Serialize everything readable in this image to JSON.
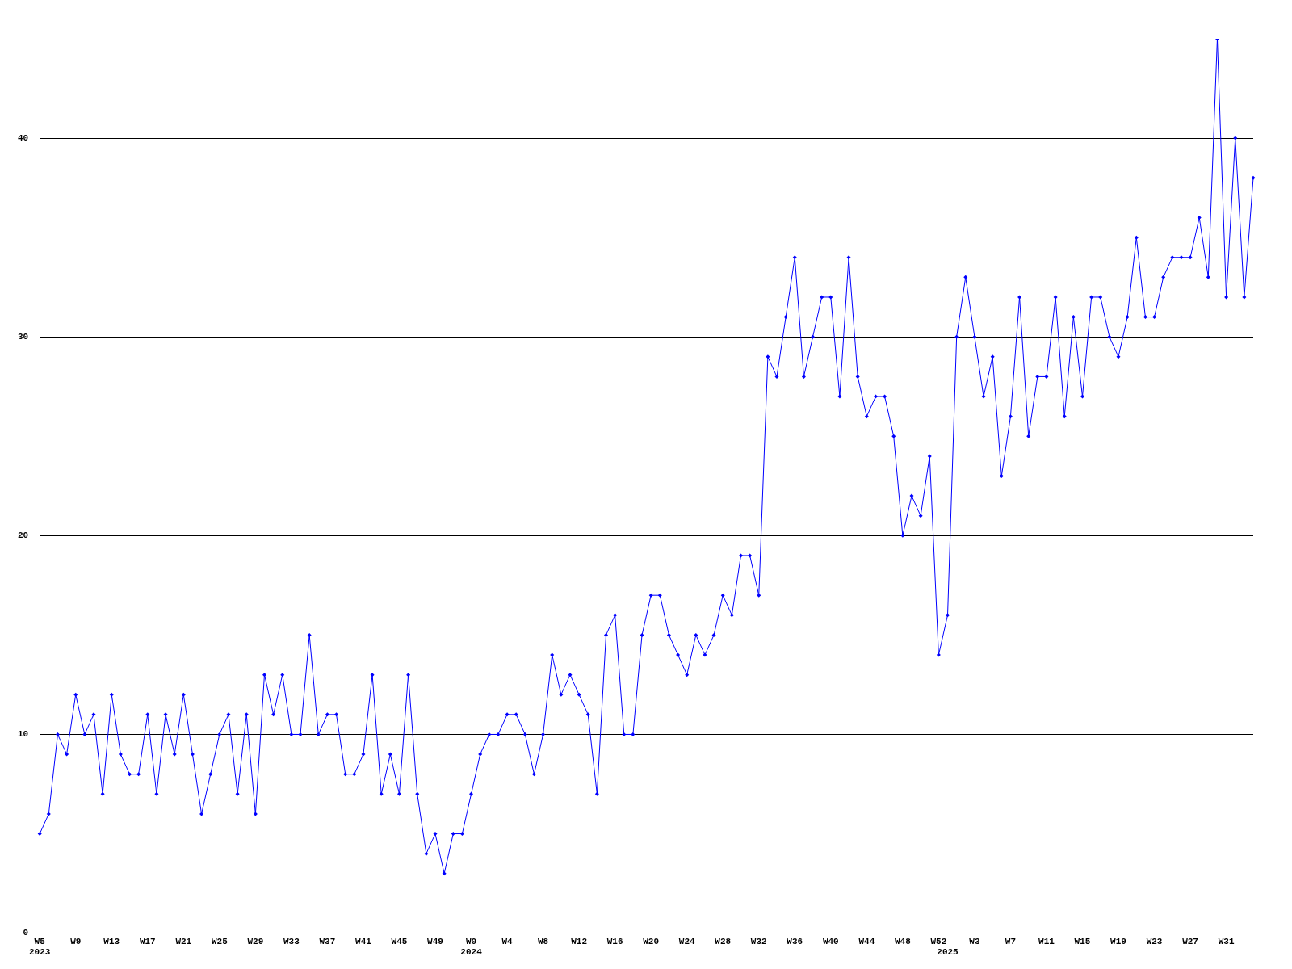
{
  "chart_data": {
    "type": "line",
    "categories": [
      "W5\n2023",
      null,
      null,
      null,
      "W9",
      null,
      null,
      null,
      "W13",
      null,
      null,
      null,
      "W17",
      null,
      null,
      null,
      "W21",
      null,
      null,
      null,
      "W25",
      null,
      null,
      null,
      "W29",
      null,
      null,
      null,
      "W33",
      null,
      null,
      null,
      "W37",
      null,
      null,
      null,
      "W41",
      null,
      null,
      null,
      "W45",
      null,
      null,
      null,
      "W49",
      null,
      null,
      null,
      "W0\n2024",
      null,
      null,
      null,
      "W4",
      null,
      null,
      null,
      "W8",
      null,
      null,
      null,
      "W12",
      null,
      null,
      null,
      "W16",
      null,
      null,
      null,
      "W20",
      null,
      null,
      null,
      "W24",
      null,
      null,
      null,
      "W28",
      null,
      null,
      null,
      "W32",
      null,
      null,
      null,
      "W36",
      null,
      null,
      null,
      "W40",
      null,
      null,
      null,
      "W44",
      null,
      null,
      null,
      "W48",
      null,
      null,
      null,
      "W52",
      "\n2025",
      null,
      null,
      "W3",
      null,
      null,
      null,
      "W7",
      null,
      null,
      null,
      "W11",
      null,
      null,
      null,
      "W15",
      null,
      null,
      null,
      "W19",
      null,
      null,
      null,
      "W23",
      null,
      null,
      null,
      "W27",
      null,
      null,
      null,
      "W31",
      null,
      null,
      null
    ],
    "values": [
      5,
      6,
      10,
      9,
      12,
      10,
      11,
      7,
      12,
      9,
      8,
      8,
      11,
      7,
      11,
      9,
      12,
      9,
      6,
      8,
      10,
      11,
      7,
      11,
      6,
      13,
      11,
      13,
      10,
      10,
      15,
      10,
      11,
      11,
      8,
      8,
      9,
      13,
      7,
      9,
      7,
      13,
      7,
      4,
      5,
      3,
      5,
      5,
      7,
      9,
      10,
      10,
      11,
      11,
      10,
      8,
      10,
      14,
      12,
      13,
      12,
      11,
      7,
      15,
      16,
      10,
      10,
      15,
      17,
      17,
      15,
      14,
      13,
      15,
      14,
      15,
      17,
      16,
      19,
      19,
      17,
      29,
      28,
      31,
      34,
      28,
      30,
      32,
      32,
      27,
      34,
      28,
      26,
      27,
      27,
      25,
      20,
      22,
      21,
      24,
      14,
      16,
      30,
      33,
      30,
      27,
      29,
      23,
      26,
      32,
      25,
      28,
      28,
      32,
      26,
      31,
      27,
      32,
      32,
      30,
      29,
      31,
      35,
      31,
      31,
      33,
      34,
      34,
      34,
      36,
      33,
      45,
      32,
      40,
      32,
      38
    ],
    "color": "#0000ff",
    "ylim": [
      0,
      45
    ],
    "yticks": [
      0,
      10,
      20,
      30,
      40
    ],
    "grid": "y",
    "marker": "diamond"
  }
}
